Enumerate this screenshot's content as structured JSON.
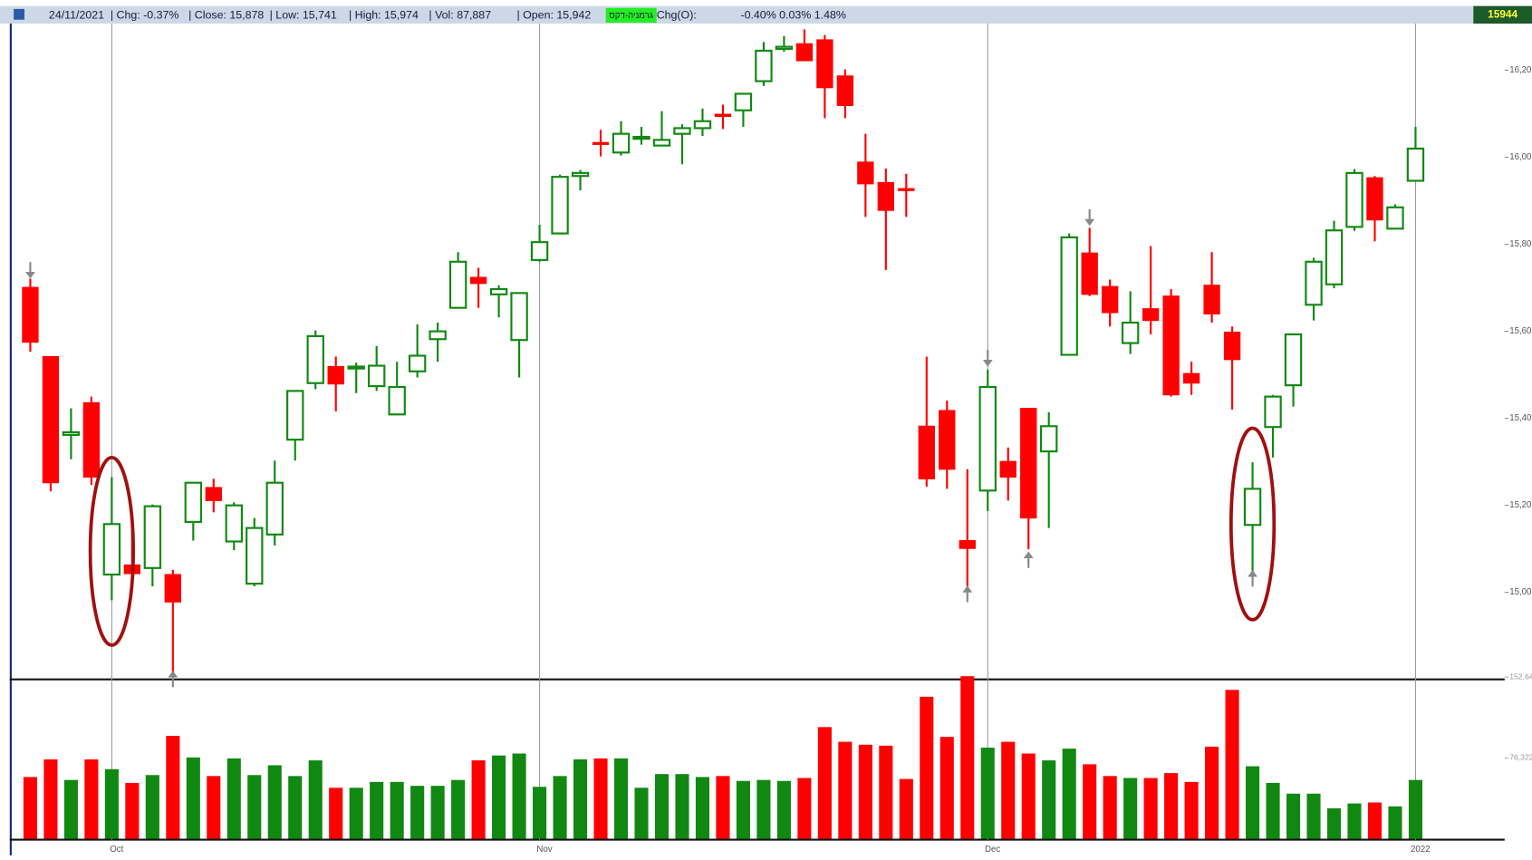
{
  "chart_data": {
    "type": "candlestick",
    "header": [
      "24/11/2021",
      "| Chg: -0.37%",
      "| Close: 15,878",
      "| Low: 15,741",
      "| High: 15,974",
      "| Vol: 87,887",
      "| Open: 15,942",
      "Chg(O):",
      "-0.40% 0.03% 1.48%"
    ],
    "instrument": "גרמניה-דקס",
    "last_price": "15944",
    "categories": [
      null,
      null,
      null,
      null,
      "Oct",
      null,
      null,
      null,
      null,
      null,
      null,
      null,
      null,
      null,
      null,
      null,
      null,
      null,
      null,
      null,
      null,
      null,
      null,
      null,
      null,
      "Nov",
      null,
      null,
      null,
      null,
      null,
      null,
      null,
      null,
      null,
      null,
      null,
      null,
      null,
      null,
      null,
      null,
      null,
      null,
      null,
      null,
      null,
      "Dec",
      null,
      null,
      null,
      null,
      null,
      null,
      null,
      null,
      null,
      null,
      null,
      null,
      null,
      null,
      null,
      null,
      null,
      null,
      null,
      null,
      "2022"
    ],
    "open": [
      15701,
      15542,
      15362,
      15436,
      15041,
      15063,
      15056,
      15041,
      15162,
      15241,
      15117,
      15020,
      15133,
      15351,
      15481,
      15519,
      15515,
      15474,
      15409,
      15508,
      15582,
      15654,
      15724,
      15685,
      15580,
      15764,
      15825,
      15957,
      16034,
      16011,
      16043,
      16027,
      16054,
      16067,
      16099,
      16108,
      16175,
      16249,
      16261,
      16270,
      16187,
      15989,
      15942,
      15928,
      15382,
      15418,
      15119,
      15234,
      15301,
      15423,
      15324,
      15546,
      15780,
      15703,
      15573,
      15652,
      15681,
      15503,
      15706,
      15598,
      15155,
      15380,
      15476,
      15661,
      15708,
      15840,
      15953,
      15836,
      15946
    ],
    "high": [
      15721,
      15542,
      15423,
      15450,
      15265,
      15178,
      15202,
      15052,
      15252,
      15261,
      15207,
      15171,
      15303,
      15463,
      15602,
      15542,
      15528,
      15566,
      15530,
      15616,
      15620,
      15782,
      15746,
      15706,
      15688,
      15845,
      15960,
      15971,
      16063,
      16083,
      16070,
      16106,
      16076,
      16112,
      16121,
      16146,
      16265,
      16279,
      16294,
      16281,
      16202,
      16054,
      15974,
      15962,
      15542,
      15441,
      15283,
      15512,
      15333,
      15423,
      15414,
      15825,
      15838,
      15719,
      15692,
      15796,
      15697,
      15530,
      15782,
      15611,
      15299,
      15454,
      15593,
      15769,
      15854,
      15973,
      15957,
      15892,
      16070
    ],
    "low": [
      15553,
      15232,
      15306,
      15247,
      14982,
      15018,
      15014,
      14807,
      15119,
      15184,
      15097,
      15014,
      15108,
      15303,
      15467,
      15416,
      15458,
      15463,
      15409,
      15494,
      15530,
      15654,
      15654,
      15632,
      15494,
      15760,
      15825,
      15924,
      16002,
      16004,
      16029,
      16027,
      15984,
      16049,
      16065,
      16070,
      16164,
      16243,
      16222,
      16090,
      16090,
      15863,
      15741,
      15863,
      15243,
      15238,
      15014,
      15187,
      15211,
      15099,
      15148,
      15546,
      15681,
      15611,
      15548,
      15593,
      15450,
      15454,
      15620,
      15420,
      15045,
      15310,
      15427,
      15625,
      15699,
      15831,
      15807,
      15836,
      15946
    ],
    "close": [
      15575,
      15252,
      15368,
      15265,
      15157,
      15043,
      15198,
      14978,
      15252,
      15211,
      15200,
      15148,
      15252,
      15463,
      15589,
      15479,
      15519,
      15521,
      15472,
      15544,
      15600,
      15760,
      15710,
      15697,
      15688,
      15805,
      15955,
      15964,
      16031,
      16054,
      16047,
      16040,
      16067,
      16083,
      16094,
      16146,
      16245,
      16254,
      16222,
      16160,
      16119,
      15939,
      15878,
      15924,
      15261,
      15283,
      15101,
      15472,
      15265,
      15171,
      15382,
      15816,
      15685,
      15643,
      15620,
      15625,
      15454,
      15481,
      15640,
      15535,
      15238,
      15450,
      15593,
      15760,
      15832,
      15964,
      15856,
      15885,
      16020
    ],
    "volume": [
      58275,
      74925,
      55500,
      74925,
      65675,
      52725,
      60125,
      97125,
      76775,
      59200,
      75850,
      60125,
      69375,
      59200,
      74000,
      48100,
      48100,
      53650,
      53650,
      49950,
      49950,
      55500,
      74000,
      78625,
      80475,
      49025,
      59200,
      74925,
      75850,
      75850,
      48100,
      61050,
      61050,
      58275,
      59200,
      54575,
      55500,
      54575,
      57350,
      105450,
      91575,
      88800,
      87887,
      56425,
      134125,
      96200,
      153550,
      86025,
      91575,
      80475,
      74000,
      85100,
      70300,
      59200,
      57350,
      57350,
      61975,
      53650,
      86950,
      140600,
      68450,
      52725,
      42550,
      42550,
      28675,
      33300,
      34225,
      30525,
      55500
    ],
    "up_color": "#118811",
    "down_color": "#ff0000",
    "ylim": [
      14800,
      16305
    ],
    "yticks": [
      {
        "value": 15000,
        "label": "15,00"
      },
      {
        "value": 15200,
        "label": "15,20"
      },
      {
        "value": 15400,
        "label": "15,40"
      },
      {
        "value": 15600,
        "label": "15,60"
      },
      {
        "value": 15800,
        "label": "15,80"
      },
      {
        "value": 16000,
        "label": "16,00"
      },
      {
        "value": 16200,
        "label": "16,20"
      }
    ],
    "vlim": [
      0,
      157000
    ],
    "vticks": [
      {
        "value": 76322,
        "label": "76,322"
      },
      {
        "value": 152644,
        "label": "152,64"
      }
    ]
  }
}
